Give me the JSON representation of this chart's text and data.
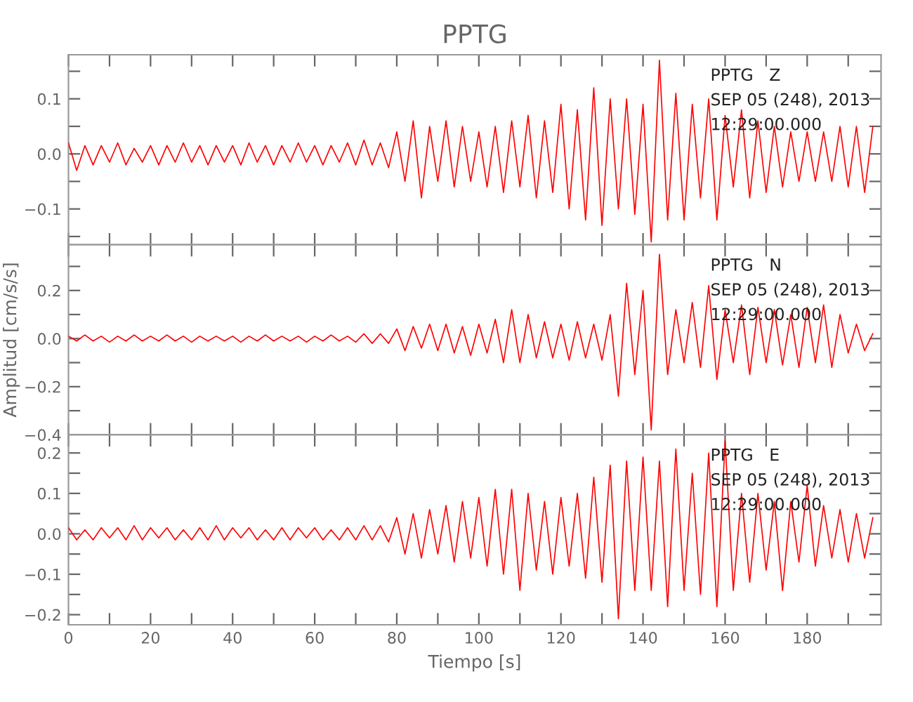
{
  "chart_data": [
    {
      "type": "line",
      "title": "PPTG",
      "tick_labels": "y",
      "x": [
        0,
        2,
        4,
        6,
        8,
        10,
        12,
        14,
        16,
        18,
        20,
        22,
        24,
        26,
        28,
        30,
        32,
        34,
        36,
        38,
        40,
        42,
        44,
        46,
        48,
        50,
        52,
        54,
        56,
        58,
        60,
        62,
        64,
        66,
        68,
        70,
        72,
        74,
        76,
        78,
        80,
        82,
        84,
        86,
        88,
        90,
        92,
        94,
        96,
        98,
        100,
        102,
        104,
        106,
        108,
        110,
        112,
        114,
        116,
        118,
        120,
        122,
        124,
        126,
        128,
        130,
        132,
        134,
        136,
        138,
        140,
        142,
        144,
        146,
        148,
        150,
        152,
        154,
        156,
        158,
        160,
        162,
        164,
        166,
        168,
        170,
        172,
        174,
        176,
        178,
        180,
        182,
        184,
        186,
        188,
        190,
        192,
        194,
        196
      ],
      "grid": false,
      "legend": false,
      "annotations": [
        "PPTG   Z",
        "SEP 05 (248), 2013",
        "12:29:00.000"
      ],
      "xlim": [
        0,
        198
      ],
      "ylim": [
        -0.165,
        0.18
      ],
      "xticks": [
        {
          "value": 0,
          "label": null
        },
        {
          "value": 10,
          "label": null
        },
        {
          "value": 20,
          "label": null
        },
        {
          "value": 30,
          "label": null
        },
        {
          "value": 40,
          "label": null
        },
        {
          "value": 50,
          "label": null
        },
        {
          "value": 60,
          "label": null
        },
        {
          "value": 70,
          "label": null
        },
        {
          "value": 80,
          "label": null
        },
        {
          "value": 90,
          "label": null
        },
        {
          "value": 100,
          "label": null
        },
        {
          "value": 110,
          "label": null
        },
        {
          "value": 120,
          "label": null
        },
        {
          "value": 130,
          "label": null
        },
        {
          "value": 140,
          "label": null
        },
        {
          "value": 150,
          "label": null
        },
        {
          "value": 160,
          "label": null
        },
        {
          "value": 170,
          "label": null
        },
        {
          "value": 180,
          "label": null
        },
        {
          "value": 190,
          "label": null
        }
      ],
      "yticks": [
        {
          "value": -0.15,
          "label": null
        },
        {
          "value": -0.1,
          "label": "−0.1"
        },
        {
          "value": -0.05,
          "label": null
        },
        {
          "value": 0.0,
          "label": "0.0"
        },
        {
          "value": 0.05,
          "label": null
        },
        {
          "value": 0.1,
          "label": "0.1"
        },
        {
          "value": 0.15,
          "label": null
        }
      ],
      "series": [
        {
          "color": "#ff0000",
          "values": [
            0.02,
            -0.03,
            0.015,
            -0.02,
            0.015,
            -0.015,
            0.02,
            -0.02,
            0.01,
            -0.015,
            0.015,
            -0.02,
            0.015,
            -0.015,
            0.02,
            -0.015,
            0.015,
            -0.02,
            0.015,
            -0.015,
            0.015,
            -0.02,
            0.02,
            -0.015,
            0.015,
            -0.02,
            0.015,
            -0.015,
            0.02,
            -0.015,
            0.015,
            -0.02,
            0.015,
            -0.015,
            0.02,
            -0.02,
            0.025,
            -0.02,
            0.02,
            -0.025,
            0.04,
            -0.05,
            0.06,
            -0.08,
            0.05,
            -0.05,
            0.06,
            -0.06,
            0.05,
            -0.05,
            0.04,
            -0.06,
            0.05,
            -0.07,
            0.06,
            -0.06,
            0.07,
            -0.08,
            0.06,
            -0.07,
            0.09,
            -0.1,
            0.08,
            -0.12,
            0.12,
            -0.13,
            0.1,
            -0.1,
            0.1,
            -0.11,
            0.09,
            -0.16,
            0.17,
            -0.12,
            0.11,
            -0.12,
            0.09,
            -0.08,
            0.1,
            -0.12,
            0.07,
            -0.06,
            0.08,
            -0.08,
            0.06,
            -0.07,
            0.05,
            -0.06,
            0.04,
            -0.05,
            0.04,
            -0.05,
            0.04,
            -0.05,
            0.05,
            -0.06,
            0.05,
            -0.07,
            0.05
          ]
        }
      ]
    },
    {
      "type": "line",
      "ylabel": "Amplitud [cm/s/s]",
      "tick_labels": "y",
      "x": [
        0,
        2,
        4,
        6,
        8,
        10,
        12,
        14,
        16,
        18,
        20,
        22,
        24,
        26,
        28,
        30,
        32,
        34,
        36,
        38,
        40,
        42,
        44,
        46,
        48,
        50,
        52,
        54,
        56,
        58,
        60,
        62,
        64,
        66,
        68,
        70,
        72,
        74,
        76,
        78,
        80,
        82,
        84,
        86,
        88,
        90,
        92,
        94,
        96,
        98,
        100,
        102,
        104,
        106,
        108,
        110,
        112,
        114,
        116,
        118,
        120,
        122,
        124,
        126,
        128,
        130,
        132,
        134,
        136,
        138,
        140,
        142,
        144,
        146,
        148,
        150,
        152,
        154,
        156,
        158,
        160,
        162,
        164,
        166,
        168,
        170,
        172,
        174,
        176,
        178,
        180,
        182,
        184,
        186,
        188,
        190,
        192,
        194,
        196
      ],
      "grid": false,
      "legend": false,
      "annotations": [
        "PPTG   N",
        "SEP 05 (248), 2013",
        "12:29:00.000"
      ],
      "xlim": [
        0,
        198
      ],
      "ylim": [
        -0.4,
        0.39
      ],
      "xticks": [
        {
          "value": 0,
          "label": null
        },
        {
          "value": 10,
          "label": null
        },
        {
          "value": 20,
          "label": null
        },
        {
          "value": 30,
          "label": null
        },
        {
          "value": 40,
          "label": null
        },
        {
          "value": 50,
          "label": null
        },
        {
          "value": 60,
          "label": null
        },
        {
          "value": 70,
          "label": null
        },
        {
          "value": 80,
          "label": null
        },
        {
          "value": 90,
          "label": null
        },
        {
          "value": 100,
          "label": null
        },
        {
          "value": 110,
          "label": null
        },
        {
          "value": 120,
          "label": null
        },
        {
          "value": 130,
          "label": null
        },
        {
          "value": 140,
          "label": null
        },
        {
          "value": 150,
          "label": null
        },
        {
          "value": 160,
          "label": null
        },
        {
          "value": 170,
          "label": null
        },
        {
          "value": 180,
          "label": null
        },
        {
          "value": 190,
          "label": null
        }
      ],
      "yticks": [
        {
          "value": -0.4,
          "label": "−0.4"
        },
        {
          "value": -0.3,
          "label": null
        },
        {
          "value": -0.2,
          "label": "−0.2"
        },
        {
          "value": -0.1,
          "label": null
        },
        {
          "value": 0.0,
          "label": "0.0"
        },
        {
          "value": 0.1,
          "label": null
        },
        {
          "value": 0.2,
          "label": "0.2"
        },
        {
          "value": 0.3,
          "label": null
        }
      ],
      "series": [
        {
          "color": "#ff0000",
          "values": [
            0.01,
            -0.01,
            0.015,
            -0.01,
            0.01,
            -0.015,
            0.01,
            -0.01,
            0.015,
            -0.01,
            0.01,
            -0.01,
            0.015,
            -0.01,
            0.01,
            -0.015,
            0.01,
            -0.01,
            0.01,
            -0.01,
            0.01,
            -0.015,
            0.01,
            -0.01,
            0.015,
            -0.01,
            0.01,
            -0.01,
            0.01,
            -0.015,
            0.01,
            -0.01,
            0.015,
            -0.01,
            0.01,
            -0.015,
            0.02,
            -0.02,
            0.02,
            -0.02,
            0.04,
            -0.05,
            0.05,
            -0.04,
            0.06,
            -0.05,
            0.06,
            -0.06,
            0.05,
            -0.07,
            0.06,
            -0.06,
            0.08,
            -0.1,
            0.12,
            -0.1,
            0.1,
            -0.08,
            0.07,
            -0.08,
            0.06,
            -0.09,
            0.07,
            -0.08,
            0.06,
            -0.09,
            0.1,
            -0.24,
            0.23,
            -0.15,
            0.2,
            -0.38,
            0.35,
            -0.15,
            0.12,
            -0.1,
            0.15,
            -0.12,
            0.22,
            -0.17,
            0.12,
            -0.1,
            0.14,
            -0.15,
            0.13,
            -0.1,
            0.12,
            -0.11,
            0.1,
            -0.12,
            0.13,
            -0.1,
            0.14,
            -0.12,
            0.1,
            -0.06,
            0.06,
            -0.05,
            0.02
          ]
        }
      ]
    },
    {
      "type": "line",
      "xlabel": "Tiempo [s]",
      "x": [
        0,
        2,
        4,
        6,
        8,
        10,
        12,
        14,
        16,
        18,
        20,
        22,
        24,
        26,
        28,
        30,
        32,
        34,
        36,
        38,
        40,
        42,
        44,
        46,
        48,
        50,
        52,
        54,
        56,
        58,
        60,
        62,
        64,
        66,
        68,
        70,
        72,
        74,
        76,
        78,
        80,
        82,
        84,
        86,
        88,
        90,
        92,
        94,
        96,
        98,
        100,
        102,
        104,
        106,
        108,
        110,
        112,
        114,
        116,
        118,
        120,
        122,
        124,
        126,
        128,
        130,
        132,
        134,
        136,
        138,
        140,
        142,
        144,
        146,
        148,
        150,
        152,
        154,
        156,
        158,
        160,
        162,
        164,
        166,
        168,
        170,
        172,
        174,
        176,
        178,
        180,
        182,
        184,
        186,
        188,
        190,
        192,
        194,
        196
      ],
      "grid": false,
      "legend": false,
      "annotations": [
        "PPTG   E",
        "SEP 05 (248), 2013",
        "12:29:00.000"
      ],
      "xlim": [
        0,
        198
      ],
      "ylim": [
        -0.225,
        0.245
      ],
      "xticks": [
        0,
        {
          "value": 10,
          "label": null
        },
        20,
        {
          "value": 30,
          "label": null
        },
        40,
        {
          "value": 50,
          "label": null
        },
        60,
        {
          "value": 70,
          "label": null
        },
        80,
        {
          "value": 90,
          "label": null
        },
        100,
        {
          "value": 110,
          "label": null
        },
        120,
        {
          "value": 130,
          "label": null
        },
        140,
        {
          "value": 150,
          "label": null
        },
        160,
        {
          "value": 170,
          "label": null
        },
        180,
        {
          "value": 190,
          "label": null
        }
      ],
      "yticks": [
        {
          "value": -0.2,
          "label": "−0.2"
        },
        {
          "value": -0.15,
          "label": null
        },
        {
          "value": -0.1,
          "label": "−0.1"
        },
        {
          "value": -0.05,
          "label": null
        },
        {
          "value": 0.0,
          "label": "0.0"
        },
        {
          "value": 0.05,
          "label": null
        },
        {
          "value": 0.1,
          "label": "0.1"
        },
        {
          "value": 0.15,
          "label": null
        },
        {
          "value": 0.2,
          "label": "0.2"
        }
      ],
      "series": [
        {
          "color": "#ff0000",
          "values": [
            0.015,
            -0.015,
            0.01,
            -0.015,
            0.015,
            -0.01,
            0.015,
            -0.015,
            0.02,
            -0.015,
            0.015,
            -0.01,
            0.015,
            -0.015,
            0.01,
            -0.015,
            0.015,
            -0.015,
            0.02,
            -0.015,
            0.015,
            -0.01,
            0.015,
            -0.015,
            0.01,
            -0.015,
            0.015,
            -0.015,
            0.015,
            -0.01,
            0.015,
            -0.015,
            0.01,
            -0.015,
            0.015,
            -0.015,
            0.02,
            -0.015,
            0.02,
            -0.02,
            0.04,
            -0.05,
            0.05,
            -0.06,
            0.06,
            -0.05,
            0.07,
            -0.07,
            0.08,
            -0.06,
            0.09,
            -0.08,
            0.11,
            -0.1,
            0.11,
            -0.14,
            0.1,
            -0.09,
            0.08,
            -0.1,
            0.09,
            -0.08,
            0.1,
            -0.11,
            0.14,
            -0.12,
            0.17,
            -0.21,
            0.18,
            -0.14,
            0.19,
            -0.14,
            0.18,
            -0.18,
            0.21,
            -0.14,
            0.15,
            -0.15,
            0.2,
            -0.18,
            0.23,
            -0.14,
            0.1,
            -0.12,
            0.1,
            -0.09,
            0.08,
            -0.14,
            0.08,
            -0.07,
            0.12,
            -0.08,
            0.07,
            -0.06,
            0.06,
            -0.07,
            0.05,
            -0.06,
            0.04
          ]
        }
      ]
    }
  ]
}
